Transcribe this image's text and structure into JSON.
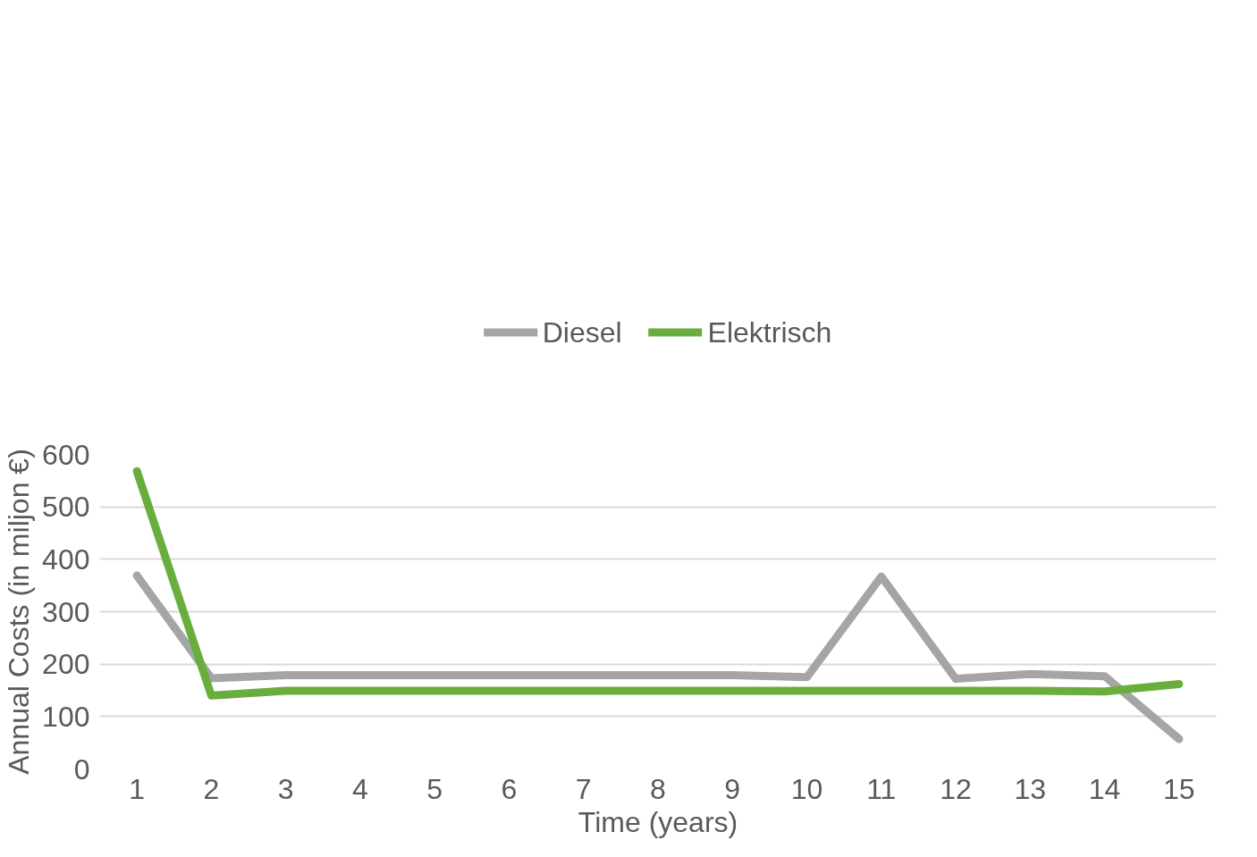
{
  "chart_data": {
    "type": "line",
    "xlabel": "Time (years)",
    "ylabel": "Annual Costs (in miljon €)",
    "x": [
      1,
      2,
      3,
      4,
      5,
      6,
      7,
      8,
      9,
      10,
      11,
      12,
      13,
      14,
      15
    ],
    "series": [
      {
        "name": "Diesel",
        "color": "#a5a5a5",
        "values": [
          369,
          173,
          179,
          179,
          179,
          179,
          179,
          179,
          179,
          175,
          367,
          172,
          181,
          177,
          57
        ]
      },
      {
        "name": "Elektrisch",
        "color": "#6aad3f",
        "values": [
          568,
          140,
          149,
          149,
          149,
          149,
          149,
          149,
          149,
          149,
          149,
          149,
          149,
          148,
          162
        ]
      }
    ],
    "xlim": [
      0.5,
      15.5
    ],
    "xticks": [
      1,
      2,
      3,
      4,
      5,
      6,
      7,
      8,
      9,
      10,
      11,
      12,
      13,
      14,
      15
    ],
    "ylim": [
      0,
      600
    ],
    "yticks": [
      0,
      100,
      200,
      300,
      400,
      500,
      600
    ],
    "grid": "y",
    "legend": "top",
    "marker": "none",
    "line_style": "solid"
  }
}
